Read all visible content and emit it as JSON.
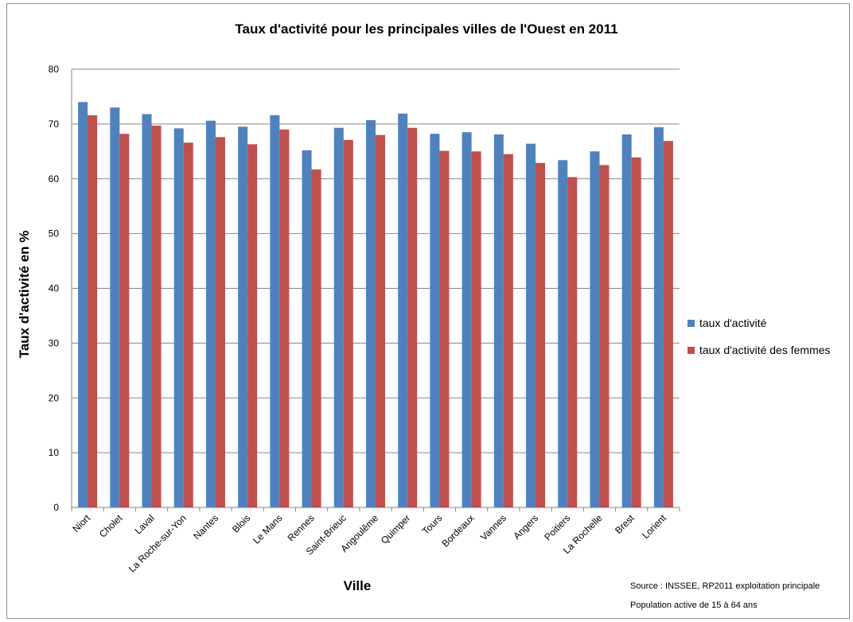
{
  "chart_data": {
    "type": "bar",
    "title": "Taux d'activité pour les principales villes de l'Ouest en 2011",
    "xlabel": "Ville",
    "ylabel": "Taux d'activité en %",
    "ylim": [
      0,
      80
    ],
    "yticks": [
      0,
      10,
      20,
      30,
      40,
      50,
      60,
      70,
      80
    ],
    "grid": true,
    "legend_position": "right",
    "categories": [
      "Niort",
      "Cholet",
      "Laval",
      "La Roche-sur-Yon",
      "Nantes",
      "Blois",
      "Le Mans",
      "Rennes",
      "Saint-Brieuc",
      "Angoulême",
      "Quimper",
      "Tours",
      "Bordeaux",
      "Vannes",
      "Angers",
      "Poitiers",
      "La Rochelle",
      "Brest",
      "Lorient"
    ],
    "series": [
      {
        "name": "taux d'activité",
        "color": "#4f81bd",
        "values": [
          74.0,
          73.0,
          71.8,
          69.2,
          70.6,
          69.5,
          71.6,
          65.2,
          69.3,
          70.7,
          71.9,
          68.2,
          68.5,
          68.1,
          66.4,
          63.4,
          65.0,
          68.1,
          69.4
        ]
      },
      {
        "name": "taux d'activité des femmes",
        "color": "#c0504d",
        "values": [
          71.6,
          68.2,
          69.7,
          66.6,
          67.6,
          66.3,
          69.0,
          61.7,
          67.1,
          68.0,
          69.3,
          65.1,
          65.0,
          64.5,
          62.9,
          60.3,
          62.5,
          63.9,
          66.9
        ]
      }
    ],
    "annotations": [
      "Source : INSSEE, RP2011 exploitation principale",
      "Population active de 15 à 64 ans"
    ]
  }
}
